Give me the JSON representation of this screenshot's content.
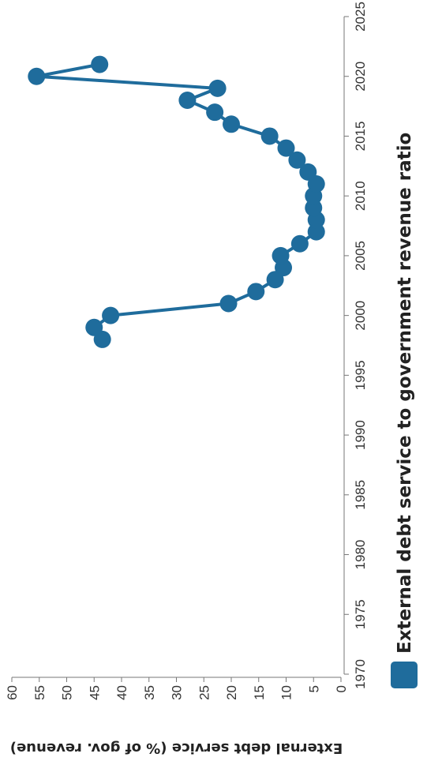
{
  "chart_data": {
    "type": "line",
    "title": "",
    "xlabel": "",
    "ylabel": "External debt service (% of gov. revenue)",
    "xlim": [
      1970,
      2025
    ],
    "ylim": [
      0,
      60
    ],
    "x_ticks": [
      "1970",
      "1975",
      "1980",
      "1985",
      "1990",
      "1995",
      "2000",
      "2005",
      "2010",
      "2015",
      "2020",
      "2025"
    ],
    "y_ticks": [
      "0",
      "5",
      "10",
      "15",
      "20",
      "25",
      "30",
      "35",
      "40",
      "45",
      "50",
      "55",
      "60"
    ],
    "grid": false,
    "legend_position": "bottom",
    "series": [
      {
        "name": "External debt service to government revenue ratio",
        "color": "#1f6c9c",
        "x": [
          1998,
          1999,
          2000,
          2001,
          2002,
          2003,
          2004,
          2005,
          2006,
          2007,
          2008,
          2009,
          2010,
          2011,
          2012,
          2013,
          2014,
          2015,
          2016,
          2017,
          2018,
          2019,
          2020,
          2021
        ],
        "y": [
          43.5,
          45,
          42,
          20.5,
          15.5,
          12,
          10.5,
          11,
          7.5,
          4.5,
          4.5,
          5,
          5,
          4.5,
          6,
          8,
          10,
          13,
          20,
          23,
          28,
          22.5,
          55.5,
          44
        ]
      }
    ]
  }
}
